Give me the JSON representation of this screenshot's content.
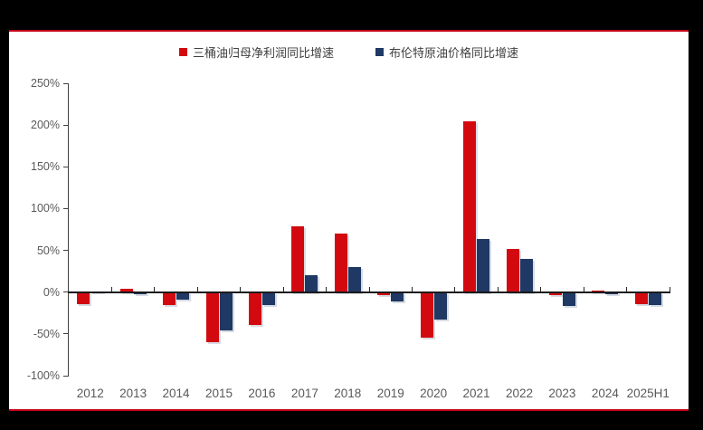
{
  "page": {
    "background_color": "#000000",
    "page_color": "#ffffff",
    "accent_rule_color": "#c40018"
  },
  "chart_data": {
    "type": "bar",
    "title": "",
    "xlabel": "",
    "ylabel": "",
    "categories": [
      "2012",
      "2013",
      "2014",
      "2015",
      "2016",
      "2017",
      "2018",
      "2019",
      "2020",
      "2021",
      "2022",
      "2023",
      "2024",
      "2025H1"
    ],
    "series": [
      {
        "name": "三桶油归母净利润同比增速",
        "color": "#d20a10",
        "values": [
          -14,
          4,
          -15,
          -60,
          -39,
          79,
          70,
          -4,
          -54,
          204,
          52,
          -4,
          2,
          -14
        ]
      },
      {
        "name": "布伦特原油价格同比增速",
        "color": "#1f3864",
        "values": [
          1,
          -3,
          -9,
          -46,
          -16,
          20,
          30,
          -11,
          -33,
          64,
          40,
          -17,
          -3,
          -16
        ]
      }
    ],
    "ylim": [
      -100,
      250
    ],
    "y_tick_step": 50,
    "y_tick_labels": [
      "250%",
      "200%",
      "150%",
      "100%",
      "50%",
      "0%",
      "-50%",
      "-100%"
    ],
    "legend_position": "top-center",
    "grid": false,
    "axis_color": "#404040",
    "tick_label_color": "#595959"
  }
}
